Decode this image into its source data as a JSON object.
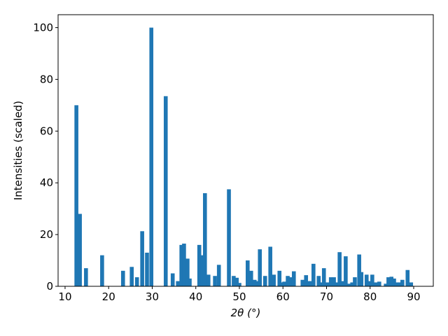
{
  "chart_data": {
    "type": "bar",
    "xlabel": "2θ (°)",
    "ylabel": "Intensities (scaled)",
    "color": "#1f77b4",
    "x": [
      12.6,
      13.4,
      14.8,
      18.5,
      23.3,
      25.3,
      26.5,
      27.7,
      28.8,
      29.8,
      33.1,
      34.7,
      35.9,
      36.7,
      37.3,
      38.1,
      38.6,
      40.8,
      41.5,
      42.1,
      42.9,
      44.4,
      45.3,
      47.6,
      48.7,
      49.4,
      50.0,
      51.9,
      52.7,
      53.5,
      54.0,
      54.7,
      55.9,
      57.1,
      57.9,
      59.2,
      59.8,
      60.3,
      61.1,
      61.9,
      62.5,
      64.5,
      65.3,
      65.9,
      66.4,
      67.0,
      68.2,
      68.8,
      69.4,
      70.2,
      71.0,
      71.7,
      72.3,
      73.0,
      73.6,
      74.4,
      75.2,
      75.9,
      76.5,
      77.5,
      78.0,
      79.2,
      79.9,
      80.5,
      81.2,
      82.1,
      83.6,
      84.2,
      84.9,
      85.5,
      86.1,
      86.8,
      87.4,
      88.6,
      89.4
    ],
    "values": [
      70,
      28,
      7,
      12,
      6,
      7.5,
      3.5,
      21.3,
      13,
      100,
      73.5,
      5,
      2,
      16,
      16.5,
      10.7,
      3,
      16,
      12,
      36,
      4.5,
      4,
      8.3,
      37.5,
      4,
      3.3,
      1.3,
      10,
      6,
      2.5,
      2,
      14.3,
      4,
      15.3,
      4.5,
      6,
      1.5,
      1.8,
      4,
      3.5,
      5.8,
      2.5,
      4.3,
      2,
      2,
      8.7,
      4,
      1.5,
      7,
      1.5,
      3.5,
      3.5,
      1.5,
      13.2,
      2,
      11.6,
      1,
      1.5,
      3.5,
      12.3,
      5.5,
      4.5,
      2,
      4.5,
      1.5,
      1.8,
      1,
      3.5,
      3.7,
      3,
      1.5,
      1.5,
      2.5,
      6.3,
      1.5
    ],
    "xlim": [
      8.4,
      94.5
    ],
    "ylim": [
      0,
      105
    ],
    "xticks": [
      10,
      20,
      30,
      40,
      50,
      60,
      70,
      80,
      90
    ],
    "yticks": [
      0,
      20,
      40,
      60,
      80,
      100
    ]
  }
}
